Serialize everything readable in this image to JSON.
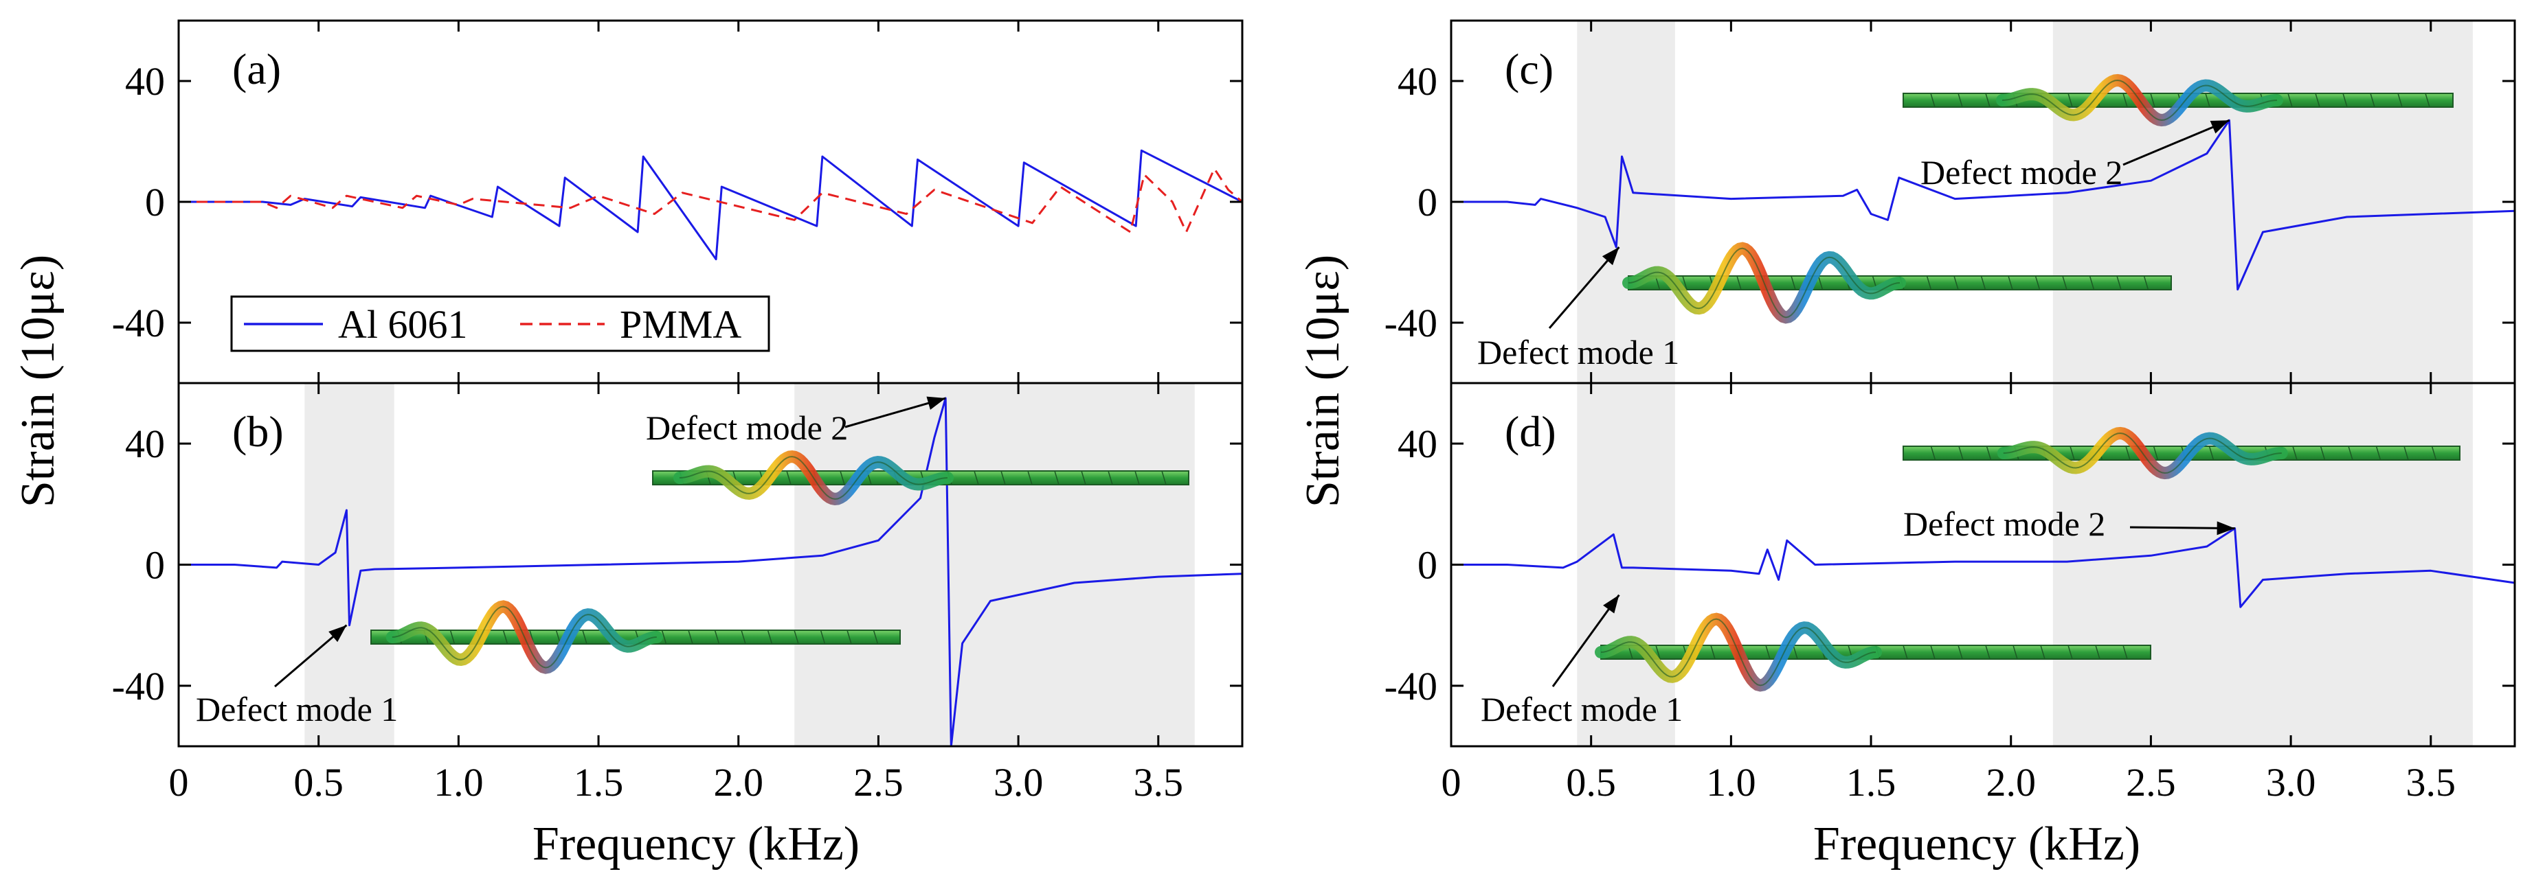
{
  "figure": {
    "colors": {
      "al6061": "#1a1ae6",
      "pmma": "#e62020",
      "band_gap": "#ececec",
      "axis": "#000000",
      "beam_green": "#3fb54a"
    }
  },
  "chart_data": [
    {
      "panel": "(a)",
      "type": "line",
      "xlabel": "Frequency (kHz)",
      "ylabel": "Strain (10με)",
      "xlim": [
        0,
        3.8
      ],
      "ylim": [
        -60,
        60
      ],
      "xticks": [
        "0",
        "0.5",
        "1.0",
        "1.5",
        "2.0",
        "2.5",
        "3.0",
        "3.5"
      ],
      "yticks": [
        "40",
        "0",
        "-40"
      ],
      "band_gaps": [],
      "legend": {
        "position": "bottom-left",
        "entries": [
          "Al 6061",
          "PMMA"
        ]
      },
      "series": [
        {
          "name": "Al 6061",
          "style": "solid",
          "color": "#1a1ae6",
          "x": [
            0,
            0.3,
            0.4,
            0.45,
            0.62,
            0.65,
            0.88,
            0.9,
            1.12,
            1.14,
            1.36,
            1.38,
            1.64,
            1.66,
            1.92,
            1.94,
            2.28,
            2.3,
            2.62,
            2.64,
            3.0,
            3.02,
            3.42,
            3.44,
            3.8
          ],
          "y": [
            0,
            0,
            -1,
            1,
            -1.5,
            1.5,
            -2,
            2,
            -5,
            5,
            -8,
            8,
            -10,
            15,
            -19,
            5,
            -8,
            15,
            -8,
            14,
            -8,
            13,
            -8,
            17,
            0
          ]
        },
        {
          "name": "PMMA",
          "style": "dashed",
          "color": "#e62020",
          "x": [
            0,
            0.3,
            0.35,
            0.4,
            0.55,
            0.6,
            0.8,
            0.85,
            1.0,
            1.05,
            1.4,
            1.5,
            1.7,
            1.8,
            2.2,
            2.3,
            2.6,
            2.7,
            3.05,
            3.15,
            3.4,
            3.45,
            3.55,
            3.6,
            3.7,
            3.75,
            3.8
          ],
          "y": [
            0,
            0,
            -2,
            2,
            -2,
            2,
            -2,
            2,
            -1,
            1,
            -2,
            2,
            -4,
            3,
            -6,
            3,
            -4,
            4,
            -7,
            5,
            -10,
            9,
            0,
            -10,
            11,
            4,
            0
          ]
        }
      ],
      "annotations": []
    },
    {
      "panel": "(b)",
      "type": "line",
      "xlabel": "Frequency (kHz)",
      "ylabel": "Strain (10με)",
      "xlim": [
        0,
        3.8
      ],
      "ylim": [
        -60,
        60
      ],
      "xticks": [
        "0",
        "0.5",
        "1.0",
        "1.5",
        "2.0",
        "2.5",
        "3.0",
        "3.5"
      ],
      "yticks": [
        "40",
        "0",
        "-40"
      ],
      "band_gaps": [
        [
          0.45,
          0.77
        ],
        [
          2.2,
          3.63
        ]
      ],
      "series": [
        {
          "name": "Al 6061",
          "style": "solid",
          "color": "#1a1ae6",
          "x": [
            0,
            0.2,
            0.35,
            0.37,
            0.5,
            0.56,
            0.6,
            0.61,
            0.65,
            0.7,
            1.0,
            1.5,
            2.0,
            2.3,
            2.5,
            2.65,
            2.7,
            2.74,
            2.76,
            2.8,
            2.9,
            3.2,
            3.5,
            3.8
          ],
          "y": [
            0,
            0,
            -1,
            1,
            0,
            4,
            18,
            -20,
            -2,
            -1.5,
            -1,
            0,
            1,
            3,
            8,
            22,
            42,
            55,
            -60,
            -26,
            -12,
            -6,
            -4,
            -3
          ]
        }
      ],
      "annotations": [
        {
          "text": "Defect mode 1",
          "x": 0.6,
          "y": -20
        },
        {
          "text": "Defect mode 2",
          "x": 2.74,
          "y": 55
        }
      ]
    },
    {
      "panel": "(c)",
      "type": "line",
      "xlabel": "Frequency (kHz)",
      "ylabel": "Strain (10με)",
      "xlim": [
        0,
        3.8
      ],
      "ylim": [
        -60,
        60
      ],
      "xticks": [
        "0",
        "0.5",
        "1.0",
        "1.5",
        "2.0",
        "2.5",
        "3.0",
        "3.5"
      ],
      "yticks": [
        "40",
        "0",
        "-40"
      ],
      "band_gaps": [
        [
          0.45,
          0.8
        ],
        [
          2.15,
          3.65
        ]
      ],
      "series": [
        {
          "name": "Al 6061",
          "style": "solid",
          "color": "#1a1ae6",
          "x": [
            0,
            0.2,
            0.3,
            0.32,
            0.45,
            0.55,
            0.59,
            0.61,
            0.65,
            1.0,
            1.4,
            1.45,
            1.5,
            1.56,
            1.6,
            1.8,
            2.2,
            2.5,
            2.7,
            2.78,
            2.81,
            2.9,
            3.2,
            3.8
          ],
          "y": [
            0,
            0,
            -1,
            1,
            -2,
            -5,
            -15,
            15,
            3,
            1,
            2,
            4,
            -4,
            -6,
            8,
            1,
            3,
            7,
            16,
            27,
            -29,
            -10,
            -5,
            -3
          ]
        }
      ],
      "annotations": [
        {
          "text": "Defect mode 1",
          "x": 0.6,
          "y": -15
        },
        {
          "text": "Defect mode 2",
          "x": 2.78,
          "y": 27
        }
      ]
    },
    {
      "panel": "(d)",
      "type": "line",
      "xlabel": "Frequency (kHz)",
      "ylabel": "Strain (10με)",
      "xlim": [
        0,
        3.8
      ],
      "ylim": [
        -60,
        60
      ],
      "xticks": [
        "0",
        "0.5",
        "1.0",
        "1.5",
        "2.0",
        "2.5",
        "3.0",
        "3.5"
      ],
      "yticks": [
        "40",
        "0",
        "-40"
      ],
      "band_gaps": [
        [
          0.45,
          0.8
        ],
        [
          2.15,
          3.65
        ]
      ],
      "series": [
        {
          "name": "Al 6061",
          "style": "solid",
          "color": "#1a1ae6",
          "x": [
            0,
            0.2,
            0.4,
            0.45,
            0.58,
            0.61,
            0.65,
            1.0,
            1.1,
            1.13,
            1.17,
            1.2,
            1.3,
            1.8,
            2.2,
            2.5,
            2.7,
            2.8,
            2.82,
            2.9,
            3.2,
            3.5,
            3.8
          ],
          "y": [
            0,
            0,
            -1,
            1,
            10,
            -1,
            -1,
            -2,
            -3,
            5,
            -5,
            8,
            0,
            1,
            1,
            3,
            6,
            12,
            -14,
            -5,
            -3,
            -2,
            -6
          ]
        }
      ],
      "annotations": [
        {
          "text": "Defect mode 1",
          "x": 0.6,
          "y": -10
        },
        {
          "text": "Defect mode 2",
          "x": 2.8,
          "y": 12
        }
      ]
    }
  ]
}
